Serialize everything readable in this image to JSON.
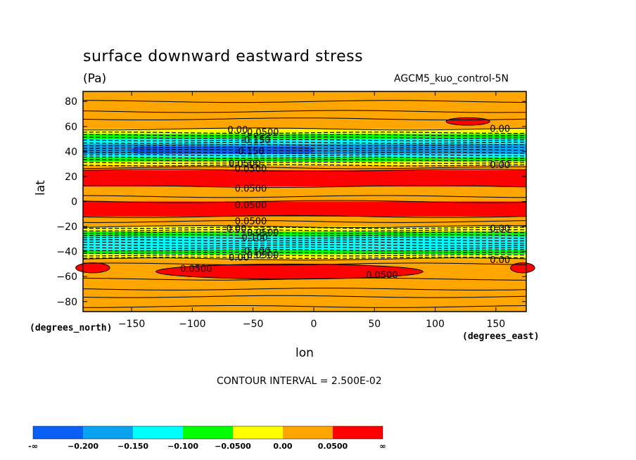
{
  "chart_data": {
    "type": "heatmap",
    "title": "surface downward eastward stress",
    "units": "(Pa)",
    "dataset": "AGCM5_kuo_control-5N",
    "xlabel": "lon",
    "ylabel": "lat",
    "x_units_label": "(degrees_east)",
    "y_units_label": "(degrees_north)",
    "xlim": [
      -190,
      175
    ],
    "ylim": [
      -88,
      88
    ],
    "x_ticks": [
      -150,
      -100,
      -50,
      0,
      50,
      100,
      150
    ],
    "x_tick_labels": [
      "−150",
      "−100",
      "−50",
      "0",
      "50",
      "100",
      "150"
    ],
    "y_ticks": [
      80,
      60,
      40,
      20,
      0,
      -20,
      -40,
      -60,
      -80
    ],
    "y_tick_labels": [
      "80",
      "60",
      "40",
      "20",
      "0",
      "−20",
      "−40",
      "−60",
      "−80"
    ],
    "contour_interval_text": "CONTOUR INTERVAL = 2.500E-02",
    "colors": {
      "lt_-0.200": "#0a5ff5",
      "-0.200_to_-0.150": "#0aa3f0",
      "-0.150_to_-0.100": "#00ffff",
      "-0.100_to_-0.050": "#00ff00",
      "-0.050_to_0.00": "#ffff00",
      "0.00_to_0.050": "#ffa500",
      "gt_0.050": "#ff0000"
    },
    "colorbar": {
      "colors": [
        "#0a5ff5",
        "#0aa3f0",
        "#00ffff",
        "#00ff00",
        "#ffff00",
        "#ffa500",
        "#ff0000"
      ],
      "labels": [
        "-∞",
        "−0.200",
        "−0.150",
        "−0.100",
        "−0.0500",
        "0.00",
        "0.0500",
        "∞"
      ]
    },
    "bands": [
      {
        "lat_from": 58,
        "lat_to": 54,
        "color": "#ffff00"
      },
      {
        "lat_from": 54,
        "lat_to": 50,
        "color": "#00ff00"
      },
      {
        "lat_from": 50,
        "lat_to": 46,
        "color": "#00ffff"
      },
      {
        "lat_from": 46,
        "lat_to": 38,
        "color": "#0aa3f0"
      },
      {
        "lat_from": 38,
        "lat_to": 35,
        "color": "#00ffff"
      },
      {
        "lat_from": 35,
        "lat_to": 32,
        "color": "#00ff00"
      },
      {
        "lat_from": 32,
        "lat_to": 29,
        "color": "#ffff00"
      },
      {
        "lat_from": 25,
        "lat_to": 12,
        "color": "#ff0000"
      },
      {
        "lat_from": 0,
        "lat_to": -12,
        "color": "#ff0000"
      },
      {
        "lat_from": -20,
        "lat_to": -24,
        "color": "#ffff00"
      },
      {
        "lat_from": -24,
        "lat_to": -28,
        "color": "#00ff00"
      },
      {
        "lat_from": -28,
        "lat_to": -39,
        "color": "#00ffff"
      },
      {
        "lat_from": -39,
        "lat_to": -42,
        "color": "#00ff00"
      },
      {
        "lat_from": -42,
        "lat_to": -46,
        "color": "#ffff00"
      }
    ],
    "blue_core": {
      "lat_from": 44,
      "lat_to": 38,
      "lon_from": -150,
      "lon_to": 0,
      "color": "#0a5ff5"
    },
    "red_patches": [
      {
        "lon": 127,
        "lat": 64,
        "rx": 18,
        "ry": 3
      },
      {
        "lon": -20,
        "lat": -56,
        "rx": 110,
        "ry": 6
      },
      {
        "lon": -182,
        "lat": -53,
        "rx": 14,
        "ry": 4
      },
      {
        "lon": 172,
        "lat": -53,
        "rx": 10,
        "ry": 4
      }
    ],
    "contour_lines": {
      "solid": [
        80,
        72,
        66,
        58,
        27,
        25,
        12,
        4,
        0,
        -12,
        -16,
        -20,
        -46,
        -50,
        -62,
        -70,
        -76,
        -84
      ],
      "dashed": [
        55,
        53,
        51,
        49,
        47,
        45,
        43,
        41,
        39,
        37,
        35,
        33,
        31,
        29,
        -21,
        -23,
        -25,
        -27,
        -29,
        -31,
        -33,
        -35,
        -37,
        -39,
        -41,
        -43,
        -45
      ]
    },
    "contour_labels": [
      {
        "text": "0.00",
        "lon": -71,
        "lat": 57
      },
      {
        "text": "0.0500",
        "lon": -55,
        "lat": 55
      },
      {
        "text": "-0.150",
        "lon": -60,
        "lat": 49
      },
      {
        "text": "-0.150",
        "lon": -65,
        "lat": 40
      },
      {
        "text": "0.0500",
        "lon": -70,
        "lat": 30
      },
      {
        "text": "0.0500",
        "lon": -65,
        "lat": 26
      },
      {
        "text": "0.0500",
        "lon": -65,
        "lat": 10
      },
      {
        "text": "0.0500",
        "lon": -65,
        "lat": -3
      },
      {
        "text": "0.0500",
        "lon": -65,
        "lat": -16
      },
      {
        "text": "0.00",
        "lon": -72,
        "lat": -22
      },
      {
        "text": "0.0500",
        "lon": -55,
        "lat": -25
      },
      {
        "text": "-0.100",
        "lon": -62,
        "lat": -29
      },
      {
        "text": "-0.100",
        "lon": -60,
        "lat": -40
      },
      {
        "text": "0.00",
        "lon": -70,
        "lat": -45
      },
      {
        "text": "0.0500",
        "lon": -55,
        "lat": -43
      },
      {
        "text": "0.0500",
        "lon": -110,
        "lat": -54
      },
      {
        "text": "0.0500",
        "lon": 43,
        "lat": -59
      },
      {
        "text": "0.00",
        "lon": 145,
        "lat": 58
      },
      {
        "text": "0.00",
        "lon": 145,
        "lat": 29
      },
      {
        "text": "0.00",
        "lon": 145,
        "lat": -22
      },
      {
        "text": "0.00",
        "lon": 145,
        "lat": -47
      }
    ]
  }
}
